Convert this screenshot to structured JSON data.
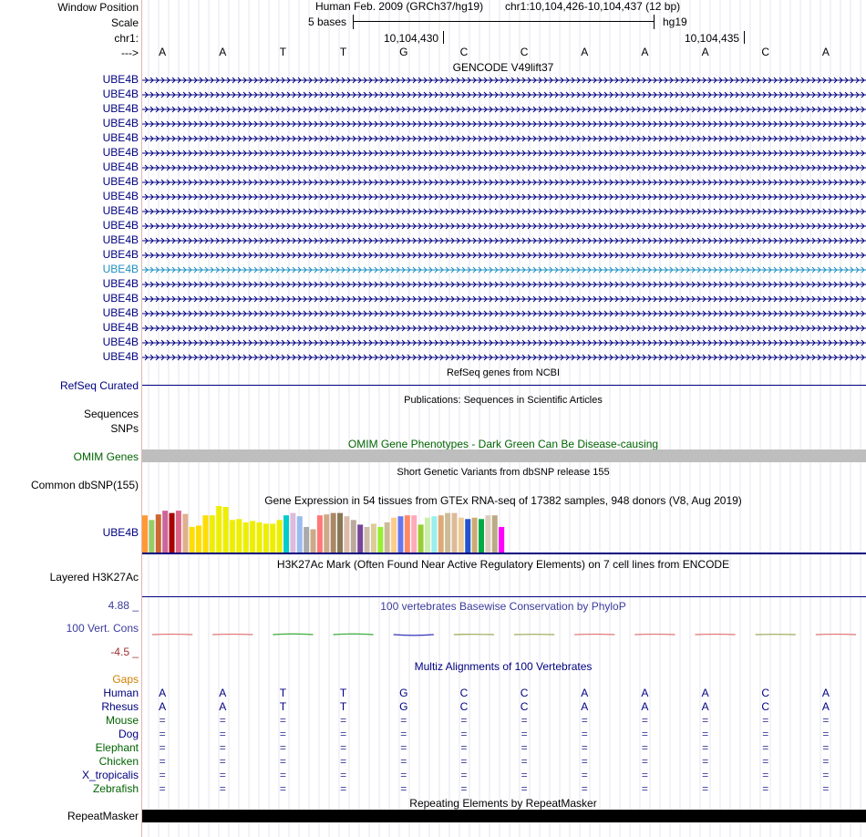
{
  "header": {
    "window_position_label": "Window Position",
    "scale_label": "Scale",
    "chr_label": "chr1:",
    "arrow_label": "--->",
    "assembly": "Human Feb. 2009 (GRCh37/hg19)",
    "position": "chr1:10,104,426-10,104,437 (12 bp)",
    "scale_text": "5 bases",
    "db": "hg19",
    "tick1": "10,104,430",
    "tick2": "10,104,435"
  },
  "sequence": [
    "A",
    "A",
    "T",
    "T",
    "G",
    "C",
    "C",
    "A",
    "A",
    "A",
    "C",
    "A"
  ],
  "gencode": {
    "title": "GENCODE V49lift37",
    "rows": [
      "UBE4B",
      "UBE4B",
      "UBE4B",
      "UBE4B",
      "UBE4B",
      "UBE4B",
      "UBE4B",
      "UBE4B",
      "UBE4B",
      "UBE4B",
      "UBE4B",
      "UBE4B",
      "UBE4B",
      "UBE4B",
      "UBE4B",
      "UBE4B",
      "UBE4B",
      "UBE4B",
      "UBE4B",
      "UBE4B"
    ],
    "highlight_row": 13
  },
  "refseq": {
    "title": "RefSeq genes from NCBI",
    "label": "RefSeq Curated"
  },
  "publications": {
    "title": "Publications: Sequences in Scientific Articles",
    "label1": "Sequences",
    "label2": "SNPs"
  },
  "omim": {
    "title": "OMIM Gene Phenotypes - Dark Green Can Be Disease-causing",
    "label": "OMIM Genes"
  },
  "dbsnp": {
    "title": "Short Genetic Variants from dbSNP release 155",
    "label": "Common dbSNP(155)"
  },
  "gtex": {
    "title": "Gene Expression in 54 tissues from GTEx RNA-seq of 17382 samples, 948 donors (V8, Aug 2019)",
    "label": "UBE4B",
    "chart_data": {
      "type": "bar",
      "values": [
        0.8,
        0.7,
        0.82,
        0.9,
        0.85,
        0.9,
        0.83,
        0.55,
        0.58,
        0.8,
        0.8,
        1.0,
        0.98,
        0.7,
        0.72,
        0.65,
        0.68,
        0.65,
        0.62,
        0.62,
        0.7,
        0.8,
        0.85,
        0.78,
        0.55,
        0.5,
        0.8,
        0.82,
        0.85,
        0.85,
        0.78,
        0.7,
        0.6,
        0.55,
        0.62,
        0.55,
        0.65,
        0.75,
        0.78,
        0.8,
        0.8,
        0.6,
        0.75,
        0.78,
        0.8,
        0.85,
        0.85,
        0.75,
        0.72,
        0.75,
        0.72,
        0.8,
        0.8,
        0.55
      ],
      "colors": [
        "#ff9933",
        "#99cc66",
        "#cc6633",
        "#cc6699",
        "#aa0000",
        "#dd6688",
        "#e0b090",
        "#ffdd00",
        "#ffdd00",
        "#ffdd00",
        "#eeee00",
        "#eeee00",
        "#eeee00",
        "#eeee00",
        "#eeee00",
        "#eeee00",
        "#eeee00",
        "#eeee00",
        "#eeee00",
        "#eeee00",
        "#eeee00",
        "#00cccc",
        "#ddbbdd",
        "#99bbee",
        "#aaaaaa",
        "#ccaa88",
        "#ff7777",
        "#ccaa88",
        "#aa8866",
        "#887755",
        "#ddbbaa",
        "#bbaa99",
        "#774499",
        "#ccbbaa",
        "#ddcc99",
        "#99ee33",
        "#ccbb99",
        "#ffcc88",
        "#6677ee",
        "#ff8866",
        "#ffaabb",
        "#99cc33",
        "#cceeaa",
        "#99eeee",
        "#ddaa77",
        "#ccbb99",
        "#ddbb99",
        "#eecc99",
        "#2255cc",
        "#ccaa77",
        "#00aa44",
        "#ddccbb",
        "#bbaa88",
        "#ff00ff"
      ]
    }
  },
  "h3k27ac": {
    "title": "H3K27Ac Mark (Often Found Near Active Regulatory Elements) on 7 cell lines from ENCODE",
    "label": "Layered H3K27Ac"
  },
  "conservation": {
    "title": "100 vertebrates Basewise Conservation by PhyloP",
    "label": "100 Vert. Cons",
    "max": "4.88 _",
    "min": "-4.5 _",
    "scores": [
      0.3,
      0.3,
      0.5,
      0.5,
      -0.6,
      0.2,
      0.2,
      0.3,
      0.3,
      0.3,
      0.2,
      0.3
    ],
    "colors": [
      "#e07070",
      "#e07070",
      "#33aa33",
      "#33aa33",
      "#3333bb",
      "#99aa55",
      "#99aa55",
      "#e07070",
      "#e07070",
      "#e07070",
      "#99aa55",
      "#e07070"
    ]
  },
  "multiz": {
    "title": "Multiz Alignments of 100 Vertebrates",
    "gaps_label": "Gaps",
    "species": [
      {
        "name": "Human",
        "color": "#000080",
        "bases": [
          "A",
          "A",
          "T",
          "T",
          "G",
          "C",
          "C",
          "A",
          "A",
          "A",
          "C",
          "A"
        ]
      },
      {
        "name": "Rhesus",
        "color": "#000080",
        "bases": [
          "A",
          "A",
          "T",
          "T",
          "G",
          "C",
          "C",
          "A",
          "A",
          "A",
          "C",
          "A"
        ]
      },
      {
        "name": "Mouse",
        "color": "#006400",
        "bases": [
          "=",
          "=",
          "=",
          "=",
          "=",
          "=",
          "=",
          "=",
          "=",
          "=",
          "=",
          "="
        ]
      },
      {
        "name": "Dog",
        "color": "#000080",
        "bases": [
          "=",
          "=",
          "=",
          "=",
          "=",
          "=",
          "=",
          "=",
          "=",
          "=",
          "=",
          "="
        ]
      },
      {
        "name": "Elephant",
        "color": "#006400",
        "bases": [
          "=",
          "=",
          "=",
          "=",
          "=",
          "=",
          "=",
          "=",
          "=",
          "=",
          "=",
          "="
        ]
      },
      {
        "name": "Chicken",
        "color": "#006400",
        "bases": [
          "=",
          "=",
          "=",
          "=",
          "=",
          "=",
          "=",
          "=",
          "=",
          "=",
          "=",
          "="
        ]
      },
      {
        "name": "X_tropicalis",
        "color": "#000080",
        "bases": [
          "=",
          "=",
          "=",
          "=",
          "=",
          "=",
          "=",
          "=",
          "=",
          "=",
          "=",
          "="
        ]
      },
      {
        "name": "Zebrafish",
        "color": "#006400",
        "bases": [
          "=",
          "=",
          "=",
          "=",
          "=",
          "=",
          "=",
          "=",
          "=",
          "=",
          "=",
          "="
        ]
      }
    ]
  },
  "repeatmasker": {
    "title": "Repeating Elements by RepeatMasker",
    "label": "RepeatMasker"
  },
  "colors": {
    "navy": "#000080",
    "gene_highlight": "#1e90c0",
    "omim_bar": "#bebebe",
    "divider": "#e0b4b4"
  }
}
